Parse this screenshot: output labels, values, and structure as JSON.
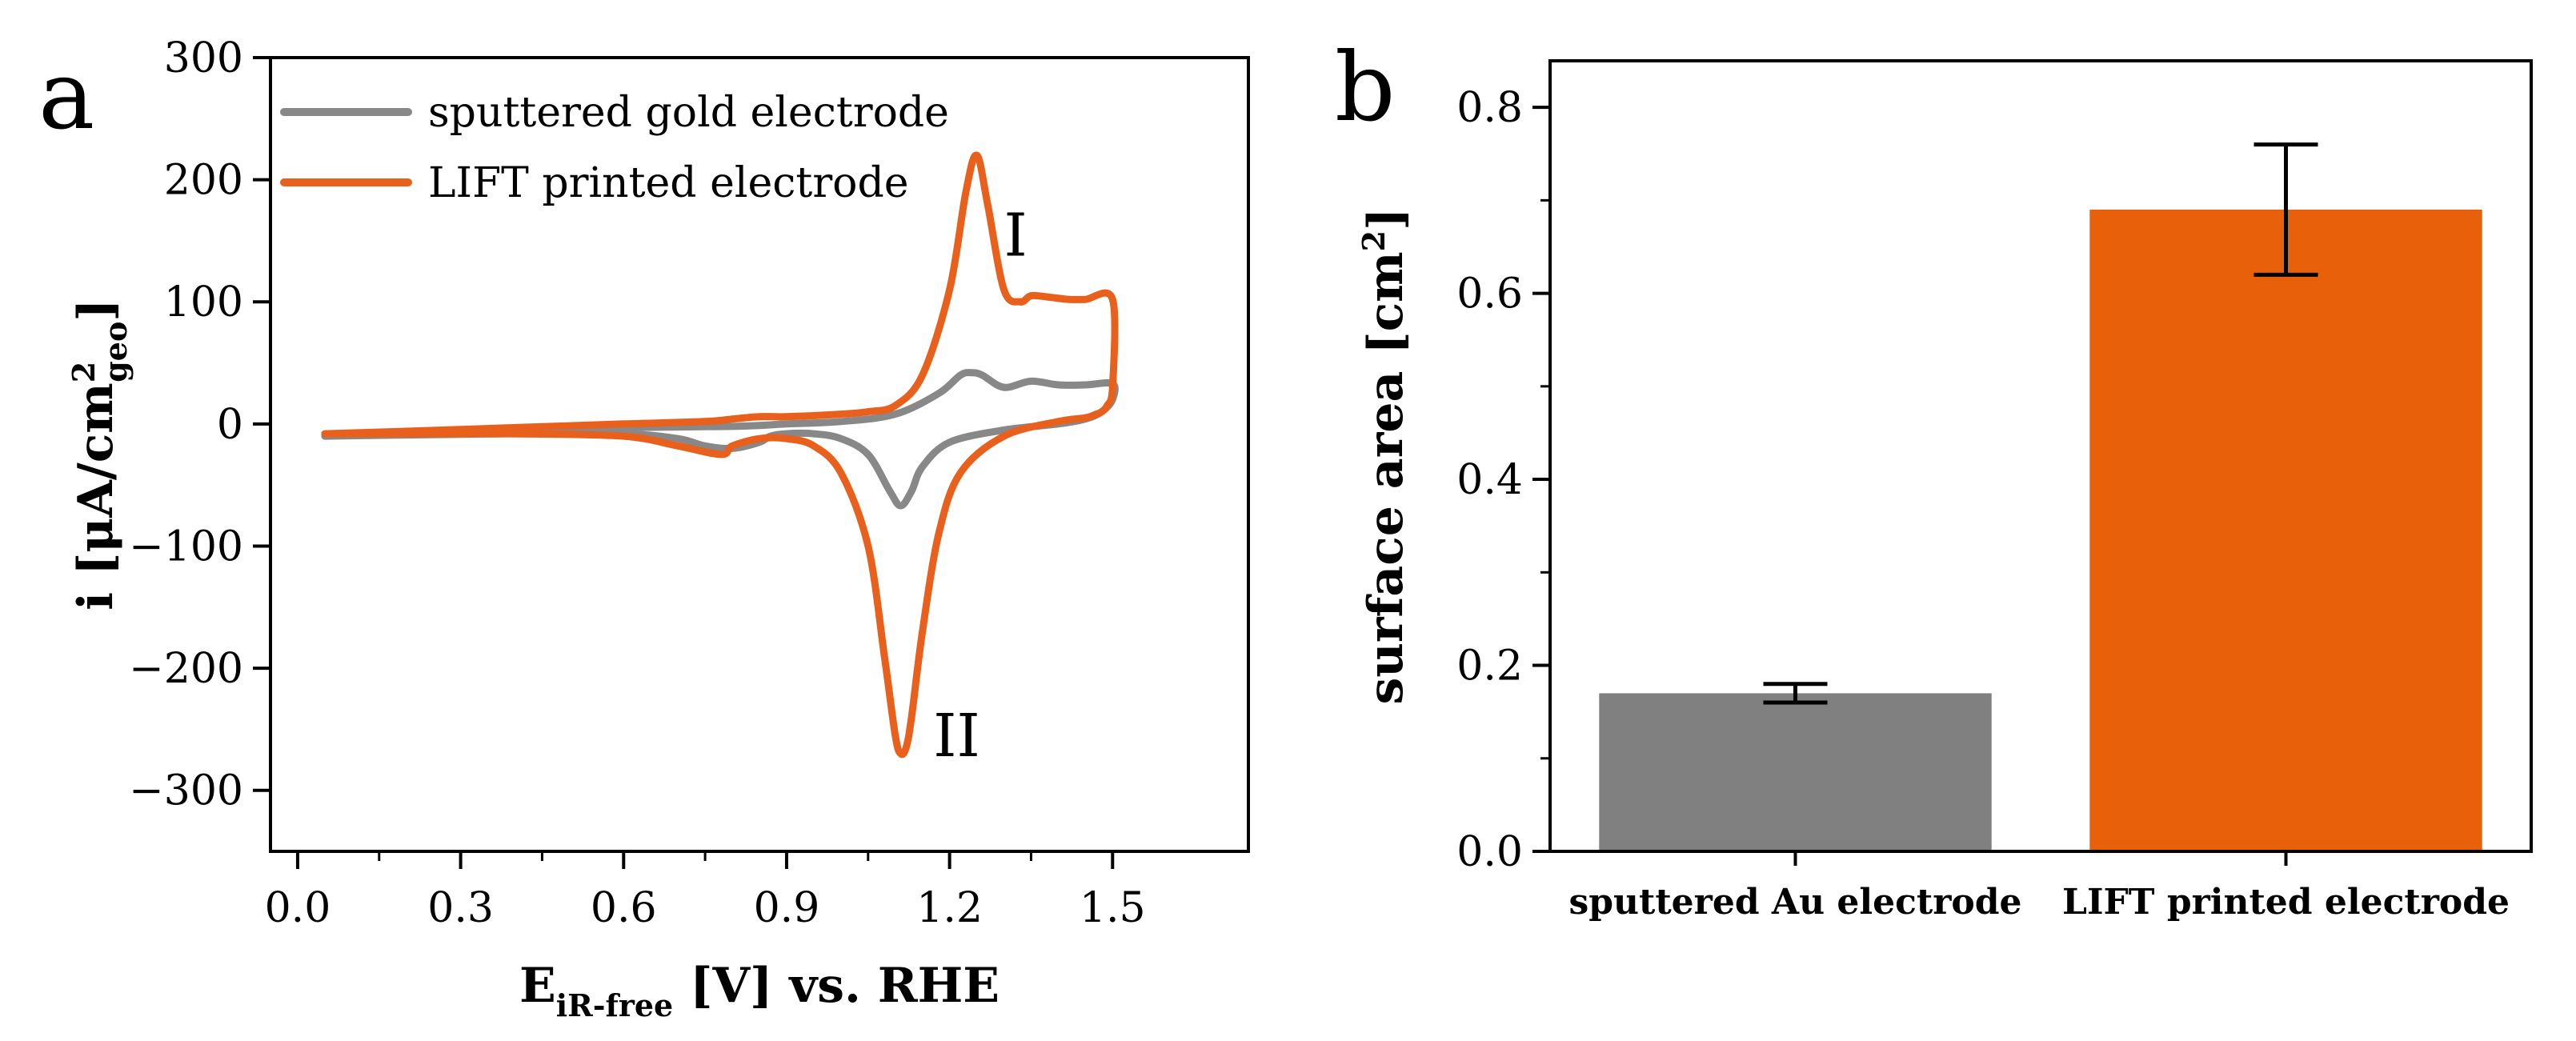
{
  "chart_data": [
    {
      "panel": "a",
      "type": "line",
      "xlabel": "E",
      "xlabel_sub": "iR-free",
      "xlabel_suffix": " [V] vs. RHE",
      "ylabel": "i [μA/cm",
      "ylabel_sup": "2",
      "ylabel_sub": "geo",
      "ylabel_suffix": "]",
      "xlim": [
        -0.05,
        1.75
      ],
      "ylim": [
        -350,
        300
      ],
      "xticks": [
        0.0,
        0.3,
        0.6,
        0.9,
        1.2,
        1.5
      ],
      "xtick_labels": [
        "0.0",
        "0.3",
        "0.6",
        "0.9",
        "1.2",
        "1.5"
      ],
      "yticks": [
        300,
        200,
        100,
        0,
        -100,
        -200,
        -300
      ],
      "ytick_labels": [
        "300",
        "200",
        "100",
        "0",
        "−100",
        "−200",
        "−300"
      ],
      "legend_position": "top-left",
      "annotations": [
        {
          "text": "I",
          "x": 1.3,
          "y": 155
        },
        {
          "text": "II",
          "x": 1.17,
          "y": -255
        }
      ],
      "series": [
        {
          "name": "sputtered gold electrode",
          "color": "#888888",
          "x": [
            0.05,
            0.2,
            0.4,
            0.6,
            0.8,
            0.9,
            1.0,
            1.1,
            1.18,
            1.22,
            1.24,
            1.26,
            1.3,
            1.35,
            1.4,
            1.45,
            1.5,
            1.5,
            1.48,
            1.45,
            1.4,
            1.3,
            1.2,
            1.15,
            1.13,
            1.11,
            1.09,
            1.05,
            1.0,
            0.95,
            0.9,
            0.87,
            0.85,
            0.8,
            0.75,
            0.7,
            0.6,
            0.4,
            0.2,
            0.05
          ],
          "y": [
            -10,
            -8,
            -5,
            -3,
            -2,
            0,
            2,
            8,
            25,
            40,
            42,
            40,
            30,
            35,
            32,
            32,
            33,
            20,
            10,
            4,
            0,
            -5,
            -15,
            -35,
            -55,
            -67,
            -55,
            -25,
            -12,
            -8,
            -8,
            -10,
            -15,
            -20,
            -18,
            -12,
            -8,
            -8,
            -9,
            -10
          ]
        },
        {
          "name": "LIFT printed electrode",
          "color": "#e8601c",
          "x": [
            0.05,
            0.2,
            0.4,
            0.6,
            0.75,
            0.8,
            0.85,
            0.9,
            1.0,
            1.05,
            1.1,
            1.15,
            1.2,
            1.23,
            1.25,
            1.27,
            1.3,
            1.33,
            1.35,
            1.38,
            1.42,
            1.45,
            1.5,
            1.5,
            1.49,
            1.48,
            1.47,
            1.45,
            1.4,
            1.3,
            1.22,
            1.18,
            1.15,
            1.13,
            1.12,
            1.11,
            1.1,
            1.08,
            1.05,
            1.0,
            0.95,
            0.9,
            0.85,
            0.8,
            0.78,
            0.7,
            0.6,
            0.4,
            0.2,
            0.05
          ],
          "y": [
            -8,
            -6,
            -3,
            0,
            2,
            4,
            6,
            6,
            8,
            10,
            15,
            40,
            110,
            190,
            220,
            180,
            110,
            100,
            105,
            104,
            102,
            102,
            102,
            30,
            15,
            10,
            8,
            5,
            2,
            -10,
            -40,
            -90,
            -170,
            -240,
            -265,
            -270,
            -255,
            -190,
            -100,
            -40,
            -18,
            -12,
            -12,
            -18,
            -25,
            -18,
            -10,
            -8,
            -8,
            -8
          ]
        }
      ]
    },
    {
      "panel": "b",
      "type": "bar",
      "categories": [
        "sputtered Au electrode",
        "LIFT printed electrode"
      ],
      "values": [
        0.17,
        0.69
      ],
      "error_low": [
        0.16,
        0.62
      ],
      "error_high": [
        0.18,
        0.76
      ],
      "colors": [
        "#808080",
        "#e8600a"
      ],
      "ylabel": "surface area [cm",
      "ylabel_sup": "2",
      "ylabel_suffix": "]",
      "ylim": [
        0,
        0.85
      ],
      "yticks": [
        0.0,
        0.2,
        0.4,
        0.6,
        0.8
      ],
      "ytick_labels": [
        "0.0",
        "0.2",
        "0.4",
        "0.6",
        "0.8"
      ]
    }
  ]
}
